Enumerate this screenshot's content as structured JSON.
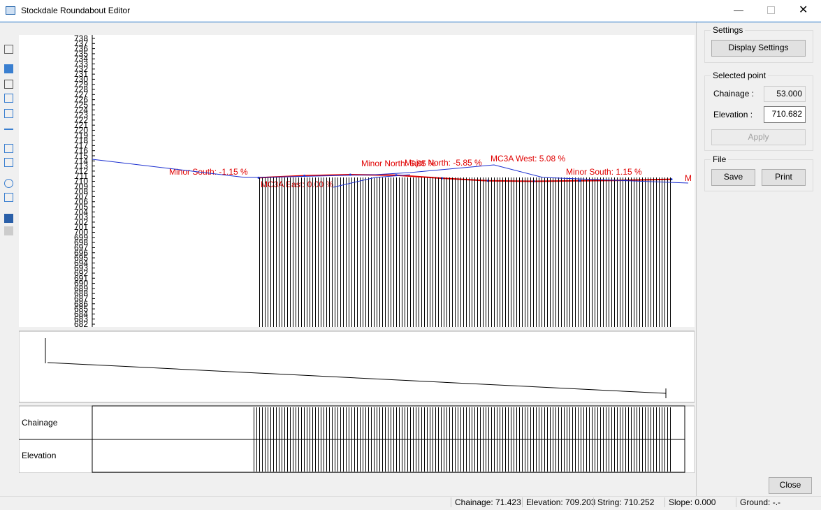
{
  "window": {
    "title": "Stockdale Roundabout Editor"
  },
  "profile": {
    "ylim": [
      682,
      738
    ],
    "yticks": [
      682,
      683,
      684,
      685,
      686,
      687,
      688,
      689,
      690,
      691,
      692,
      693,
      694,
      695,
      696,
      697,
      698,
      699,
      700,
      701,
      702,
      703,
      704,
      705,
      706,
      707,
      708,
      709,
      710,
      711,
      712,
      713,
      714,
      715,
      716,
      717,
      718,
      719,
      720,
      721,
      722,
      723,
      724,
      725,
      726,
      727,
      728,
      729,
      730,
      731,
      732,
      733,
      734,
      735,
      736,
      737,
      738
    ],
    "ground": [
      710.7,
      711.1,
      711.3,
      711.2,
      710.6,
      710.1,
      710.0,
      710.1,
      710.2,
      710.4
    ],
    "annotations": [
      "Minor South: -1.15 %",
      "MC3A East: 0.00 %",
      "Minor North: 5.85 %",
      "Major North: -5.85 %",
      "MC3A West: 5.08 %",
      "Minor South: 1.15 %",
      "M"
    ]
  },
  "table": {
    "rows": [
      "Chainage",
      "Elevation"
    ]
  },
  "sidebar": {
    "settings": {
      "title": "Settings",
      "button": "Display Settings"
    },
    "selected_point": {
      "title": "Selected point",
      "chainage_label": "Chainage :",
      "chainage": "53.000",
      "elevation_label": "Elevation :",
      "elevation": "710.682",
      "apply": "Apply"
    },
    "file": {
      "title": "File",
      "save": "Save",
      "print": "Print"
    },
    "close": "Close"
  },
  "status": [
    "Chainage: 71.423",
    "Elevation: 709.203",
    "String: 710.252",
    "Slope: 0.000",
    "Ground: -.-"
  ]
}
